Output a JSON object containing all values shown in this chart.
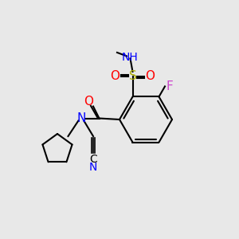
{
  "background_color": "#e8e8e8",
  "bond_color": "#000000",
  "colors": {
    "N": "#0000FF",
    "O": "#FF0000",
    "F": "#CC44CC",
    "S": "#AAAA00",
    "C": "#000000",
    "H": "#888888"
  },
  "font_size": 11,
  "bond_width": 1.5
}
